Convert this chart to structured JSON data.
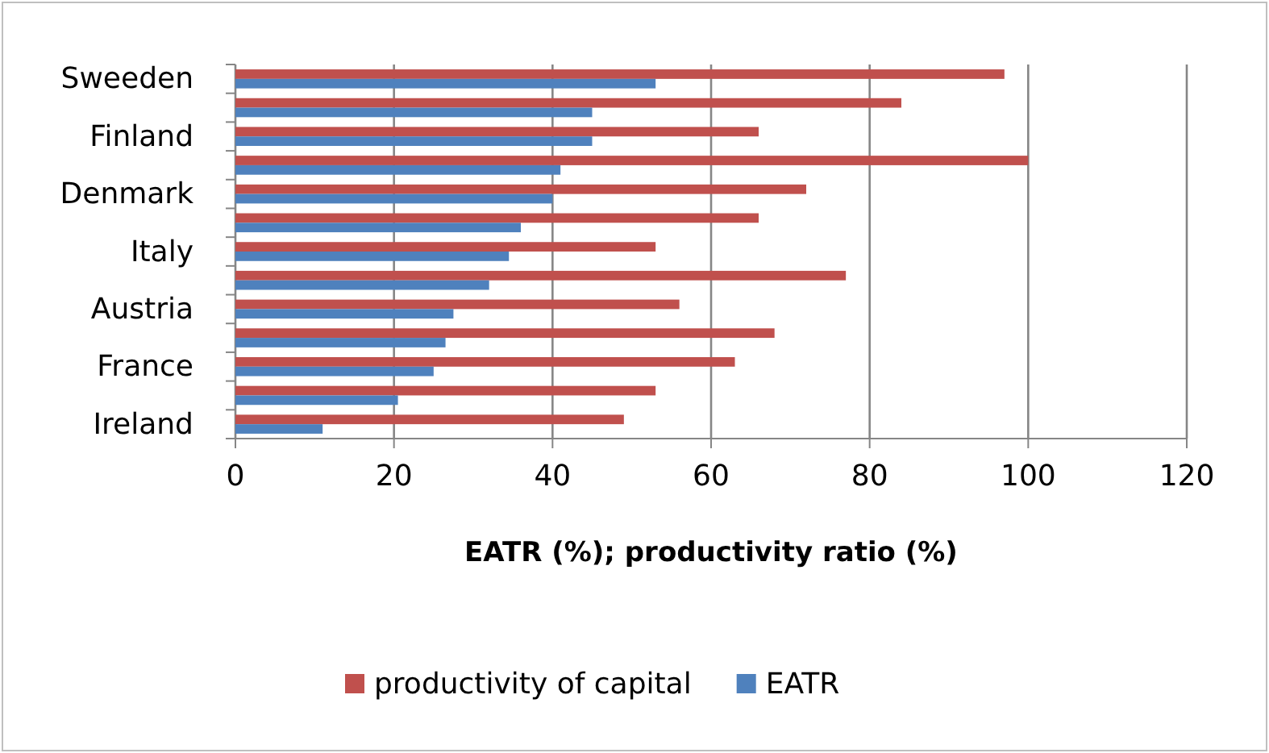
{
  "chart_data": {
    "type": "bar",
    "orientation": "horizontal",
    "xlabel": "EATR (%); productivity ratio (%)",
    "categories": [
      "Sweeden",
      null,
      "Finland",
      null,
      "Denmark",
      null,
      "Italy",
      null,
      "Austria",
      null,
      "France",
      null,
      "Ireland"
    ],
    "series": [
      {
        "name": "productivity of capital",
        "color": "#c0504d",
        "values": [
          97,
          84,
          66,
          100,
          72,
          66,
          53,
          77,
          56,
          68,
          63,
          53,
          49
        ]
      },
      {
        "name": "EATR",
        "color": "#4f81bd",
        "values": [
          53,
          45,
          45,
          41,
          40,
          36,
          34.5,
          32,
          27.5,
          26.5,
          25,
          20.5,
          11
        ]
      }
    ],
    "xlim": [
      0,
      120
    ],
    "xticks": [
      0,
      20,
      40,
      60,
      80,
      100,
      120
    ],
    "grid": "x",
    "legend": "bottom"
  }
}
